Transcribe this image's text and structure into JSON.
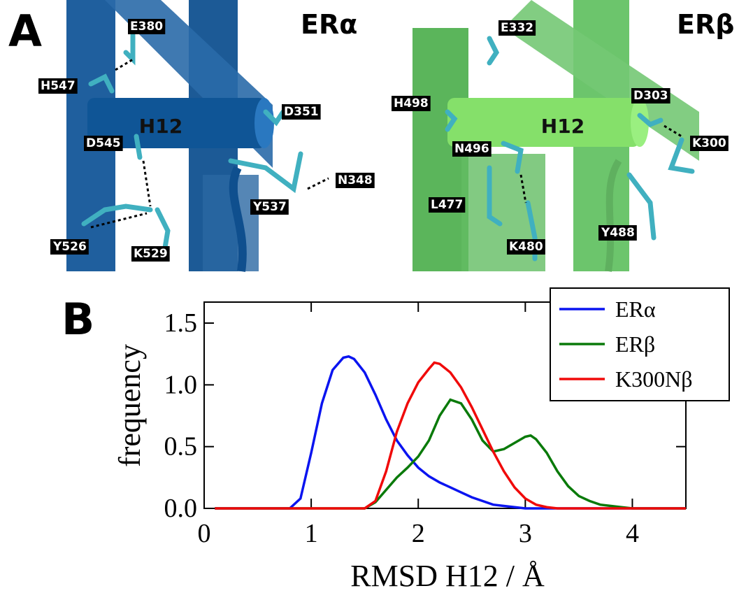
{
  "panel_a": {
    "label": "A",
    "structures": [
      {
        "title": "ERα",
        "helix": "H12",
        "residues": [
          "E380",
          "H547",
          "D351",
          "D545",
          "N348",
          "Y537",
          "Y526",
          "K529"
        ]
      },
      {
        "title": "ERβ",
        "helix": "H12",
        "residues": [
          "E332",
          "H498",
          "D303",
          "K300",
          "N496",
          "L477",
          "Y488",
          "K480"
        ]
      }
    ]
  },
  "panel_b": {
    "label": "B"
  },
  "chart_data": {
    "type": "line",
    "x_label": "RMSD H12 / Å",
    "y_label": "frequency",
    "xlim": [
      0,
      4.5
    ],
    "ylim": [
      0,
      1.67
    ],
    "xticks": [
      0,
      1,
      2,
      3,
      4
    ],
    "yticks": [
      {
        "value": 0,
        "label": "0.0"
      },
      {
        "value": 0.5,
        "label": "0.5"
      },
      {
        "value": 1,
        "label": "1.0"
      },
      {
        "value": 1.5,
        "label": "1.5"
      }
    ],
    "legend": "top-right",
    "series": [
      {
        "name": "ERα",
        "color": "#0a14f0",
        "x": [
          0.1,
          0.8,
          0.9,
          1.0,
          1.1,
          1.2,
          1.3,
          1.35,
          1.4,
          1.5,
          1.6,
          1.7,
          1.8,
          1.9,
          2.0,
          2.1,
          2.2,
          2.3,
          2.4,
          2.5,
          2.6,
          2.7,
          2.8,
          3.0,
          4.5
        ],
        "values": [
          0,
          0,
          0.08,
          0.45,
          0.85,
          1.12,
          1.22,
          1.23,
          1.21,
          1.1,
          0.92,
          0.72,
          0.55,
          0.43,
          0.33,
          0.26,
          0.21,
          0.17,
          0.13,
          0.09,
          0.06,
          0.03,
          0.02,
          0,
          0
        ]
      },
      {
        "name": "ERβ",
        "color": "#0a7a0a",
        "x": [
          0.1,
          1.5,
          1.6,
          1.7,
          1.8,
          1.9,
          2.0,
          2.1,
          2.2,
          2.3,
          2.4,
          2.5,
          2.6,
          2.7,
          2.8,
          2.9,
          3.0,
          3.05,
          3.1,
          3.2,
          3.3,
          3.4,
          3.5,
          3.6,
          3.7,
          3.8,
          4.0,
          4.5
        ],
        "values": [
          0,
          0,
          0.05,
          0.15,
          0.25,
          0.33,
          0.42,
          0.55,
          0.75,
          0.88,
          0.85,
          0.72,
          0.55,
          0.46,
          0.48,
          0.53,
          0.58,
          0.59,
          0.56,
          0.45,
          0.3,
          0.18,
          0.1,
          0.06,
          0.03,
          0.02,
          0,
          0
        ]
      },
      {
        "name": "K300Nβ",
        "color": "#f00a0a",
        "x": [
          0.1,
          1.5,
          1.6,
          1.7,
          1.8,
          1.9,
          2.0,
          2.1,
          2.15,
          2.2,
          2.3,
          2.4,
          2.5,
          2.6,
          2.7,
          2.8,
          2.9,
          3.0,
          3.1,
          3.2,
          3.3,
          4.5
        ],
        "values": [
          0,
          0,
          0.06,
          0.3,
          0.62,
          0.85,
          1.02,
          1.13,
          1.18,
          1.17,
          1.1,
          0.98,
          0.82,
          0.64,
          0.46,
          0.3,
          0.17,
          0.08,
          0.03,
          0.01,
          0,
          0
        ]
      }
    ]
  }
}
